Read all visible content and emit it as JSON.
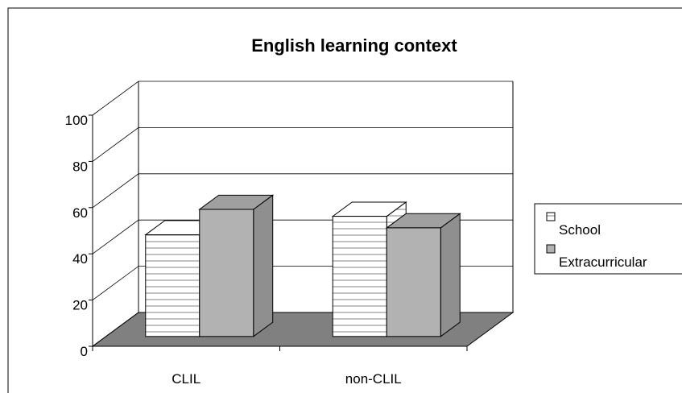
{
  "chart_data": {
    "type": "bar3d",
    "title": "English learning context",
    "categories": [
      "CLIL",
      "non-CLIL"
    ],
    "series": [
      {
        "name": "School",
        "color": "#ffffff",
        "values": [
          44,
          52
        ]
      },
      {
        "name": "Extracurricular",
        "color": "#b2b2b2",
        "values": [
          55,
          47
        ]
      }
    ],
    "ylim": [
      0,
      100
    ],
    "yticks": [
      0,
      20,
      40,
      60,
      80,
      100
    ],
    "grid": true,
    "legend": "right"
  }
}
